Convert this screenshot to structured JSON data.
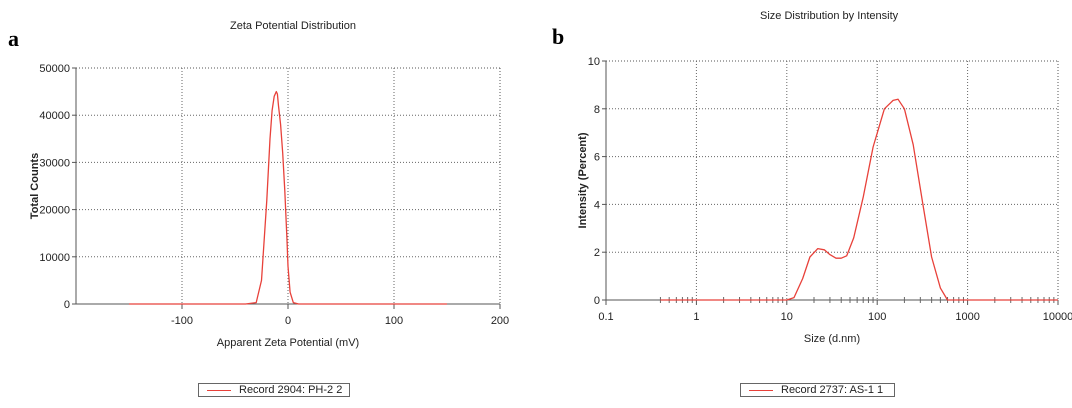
{
  "panels": {
    "a": "a",
    "b": "b"
  },
  "chart_data": [
    {
      "type": "line",
      "title": "Zeta Potential Distribution",
      "xlabel": "Apparent Zeta Potential (mV)",
      "ylabel": "Total Counts",
      "xlim": [
        -200,
        200
      ],
      "ylim": [
        0,
        50000
      ],
      "xticks": [
        -100,
        0,
        100,
        200
      ],
      "xtick_labels": [
        "-100",
        "0",
        "100",
        "200"
      ],
      "yticks": [
        0,
        10000,
        20000,
        30000,
        40000,
        50000
      ],
      "ytick_labels": [
        "0",
        "10000",
        "20000",
        "30000",
        "40000",
        "50000"
      ],
      "grid": true,
      "legend": "Record 2904: PH-2 2",
      "line_color": "#e8413a",
      "series": [
        {
          "name": "Record 2904: PH-2 2",
          "x": [
            -150,
            -40,
            -30,
            -25,
            -20,
            -17,
            -15,
            -13,
            -11,
            -10,
            -9,
            -7,
            -5,
            -3,
            -1,
            0,
            2,
            5,
            10,
            150
          ],
          "y": [
            0,
            0,
            300,
            5000,
            22000,
            35000,
            41000,
            44000,
            45000,
            44500,
            42000,
            38000,
            32000,
            24000,
            14000,
            8000,
            2500,
            300,
            0,
            0
          ]
        }
      ]
    },
    {
      "type": "line",
      "title": "Size Distribution by Intensity",
      "xlabel": "Size (d.nm)",
      "ylabel": "Intensity (Percent)",
      "xscale": "log",
      "xlim": [
        0.1,
        10000
      ],
      "ylim": [
        0,
        10
      ],
      "xticks": [
        0.1,
        1,
        10,
        100,
        1000,
        10000
      ],
      "xtick_labels": [
        "0.1",
        "1",
        "10",
        "100",
        "1000",
        "10000"
      ],
      "yticks": [
        0,
        2,
        4,
        6,
        8,
        10
      ],
      "ytick_labels": [
        "0",
        "2",
        "4",
        "6",
        "8",
        "10"
      ],
      "grid": true,
      "legend": "Record 2737: AS-1 1",
      "line_color": "#e8413a",
      "series": [
        {
          "name": "Record 2737: AS-1 1",
          "x": [
            0.4,
            10,
            12,
            15,
            18,
            22,
            26,
            30,
            35,
            40,
            46,
            55,
            70,
            90,
            120,
            150,
            170,
            200,
            250,
            320,
            400,
            500,
            600,
            10000
          ],
          "y": [
            0,
            0,
            0.1,
            0.9,
            1.8,
            2.15,
            2.1,
            1.9,
            1.75,
            1.75,
            1.85,
            2.6,
            4.3,
            6.4,
            8.0,
            8.35,
            8.4,
            8.0,
            6.5,
            4.0,
            1.8,
            0.5,
            0,
            0
          ]
        }
      ]
    }
  ]
}
